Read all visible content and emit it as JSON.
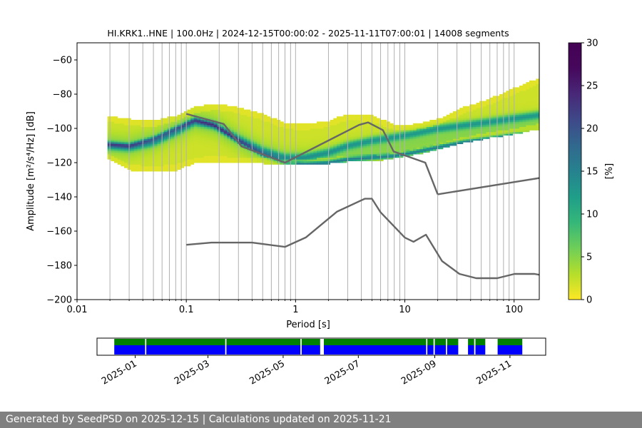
{
  "chart_data": {
    "type": "heatmap",
    "title": "HI.KRK1..HNE | 100.0Hz | 2024-12-15T00:00:02 - 2025-11-11T07:00:01 | 14008 segments",
    "xlabel": "Period [s]",
    "ylabel": "Amplitude [m²/s⁴/Hz] [dB]",
    "x_scale": "log",
    "xlim": [
      0.01,
      170
    ],
    "ylim": [
      -200,
      -50
    ],
    "x_ticks": [
      0.01,
      0.1,
      1,
      10,
      100
    ],
    "x_tick_labels": [
      "0.01",
      "0.1",
      "1",
      "10",
      "100"
    ],
    "y_ticks": [
      -200,
      -180,
      -160,
      -140,
      -120,
      -100,
      -80,
      -60
    ],
    "y_tick_labels": [
      "−200",
      "−180",
      "−160",
      "−140",
      "−120",
      "−100",
      "−80",
      "−60"
    ],
    "grid": true,
    "colorbar": {
      "label": "[%]",
      "range": [
        0,
        30
      ],
      "ticks": [
        0,
        5,
        10,
        15,
        20,
        25,
        30
      ],
      "tick_labels": [
        "0",
        "5",
        "10",
        "15",
        "20",
        "25",
        "30"
      ],
      "colormap": "viridis_r"
    },
    "psd_envelope": {
      "period": [
        0.019,
        0.03,
        0.05,
        0.08,
        0.12,
        0.18,
        0.3,
        0.5,
        0.8,
        1.2,
        2,
        3,
        5,
        8,
        12,
        20,
        35,
        60,
        100,
        170
      ],
      "upper": [
        -93,
        -95,
        -96,
        -93,
        -88,
        -86,
        -88,
        -92,
        -97,
        -98,
        -96,
        -92,
        -93,
        -98,
        -98,
        -95,
        -88,
        -83,
        -77,
        -71
      ],
      "lower": [
        -117,
        -124,
        -125,
        -124,
        -120,
        -119,
        -120,
        -120,
        -121,
        -121,
        -120,
        -119,
        -119,
        -117,
        -115,
        -112,
        -108,
        -105,
        -103,
        -100
      ],
      "mode_1": [
        -110,
        -111,
        -108,
        -102,
        -96,
        -98,
        -106,
        -113,
        -117,
        -117,
        -114,
        -110,
        -107,
        -105,
        -103,
        -100,
        -98,
        -96,
        -94,
        -92
      ],
      "mode_2": [
        -109,
        -110,
        -106,
        -100,
        -95,
        -98,
        -107,
        -115,
        -120,
        -121,
        -120,
        -118,
        -117,
        -116,
        -114,
        -111,
        -108,
        -106,
        -104,
        -103
      ]
    },
    "nhnm": {
      "period": [
        0.1,
        0.22,
        0.32,
        0.8,
        3.8,
        4.6,
        6.3,
        7.9,
        15.4,
        20
      ],
      "values": [
        -91.5,
        -97.4,
        -110.5,
        -120,
        -98,
        -96.5,
        -101,
        -113.5,
        -120,
        -138.5
      ]
    },
    "nhnm_tail": {
      "period": [
        20,
        170
      ],
      "values": [
        -138.5,
        -129
      ]
    },
    "nlnm": {
      "period": [
        0.1,
        0.17,
        0.4,
        0.8,
        1.24,
        2.4,
        4.3,
        5.0,
        6.0,
        10,
        12,
        15.6,
        21.9,
        31.6,
        45,
        70,
        101,
        154,
        170
      ],
      "values": [
        -168,
        -166.7,
        -166.7,
        -169.2,
        -163.7,
        -148.6,
        -141.1,
        -141.1,
        -149,
        -163.8,
        -166.2,
        -162.1,
        -177.5,
        -185,
        -187.5,
        -187.5,
        -185,
        -185,
        -185.5
      ]
    }
  },
  "timeline": {
    "type": "availability",
    "start": "2024-12-01",
    "end": "2025-11-30",
    "tick_labels": [
      "2025-01",
      "2025-03",
      "2025-05",
      "2025-07",
      "2025-09",
      "2025-11"
    ],
    "tick_months_from_start": [
      1,
      3,
      5,
      7,
      9,
      11
    ],
    "gaps_day_of_span": [
      [
        39,
        40
      ],
      [
        104,
        105
      ],
      [
        165,
        166
      ],
      [
        181,
        184
      ],
      [
        267,
        268
      ],
      [
        273,
        274
      ],
      [
        283,
        284
      ],
      [
        293,
        301
      ],
      [
        306,
        307
      ],
      [
        315,
        325
      ]
    ],
    "series_colors": {
      "upper": "#008000",
      "lower": "#0000ff"
    },
    "data_start_day": 14,
    "data_end_day": 345
  },
  "footer": {
    "text": "Generated by SeedPSD on 2025-12-15 | Calculations updated on 2025-11-21"
  },
  "colors": {
    "grid": "#b0b0b0",
    "noise_model": "#666666",
    "footer_bg": "#808080"
  }
}
